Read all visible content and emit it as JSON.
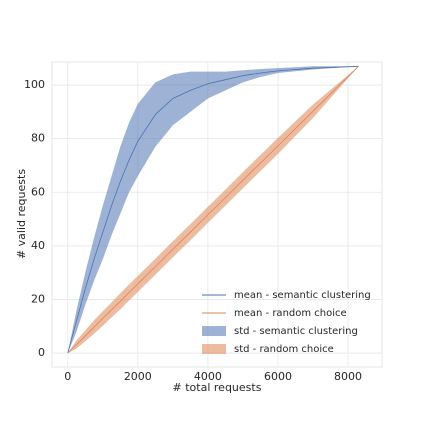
{
  "chart_data": {
    "type": "line",
    "xlabel": "# total requests",
    "ylabel": "# valid requests",
    "x": [
      0,
      250,
      500,
      750,
      1000,
      1250,
      1500,
      1750,
      2000,
      2500,
      3000,
      3500,
      4000,
      4500,
      5000,
      5500,
      6000,
      7000,
      8300
    ],
    "series": [
      {
        "name": "mean - semantic clustering",
        "color": "#4c72b0",
        "values": [
          0,
          12,
          24,
          35,
          45,
          55,
          64,
          72,
          79,
          89,
          95,
          98,
          100.5,
          102,
          103.5,
          104.5,
          105.3,
          106.3,
          107
        ]
      },
      {
        "name": "mean - random choice",
        "color": "#dd8452",
        "values": [
          0,
          3.2,
          6.4,
          9.7,
          12.9,
          16.1,
          19.3,
          22.6,
          25.8,
          32.2,
          38.7,
          45.1,
          51.6,
          58,
          64.5,
          70.9,
          77.3,
          90.2,
          107
        ]
      }
    ],
    "bands": [
      {
        "name": "std - semantic clustering",
        "color": "#4c72b0",
        "upper": [
          0,
          16,
          30,
          43,
          55,
          66,
          77,
          86,
          93,
          101,
          104,
          105,
          105,
          105,
          105.5,
          106,
          106.3,
          107,
          107
        ],
        "lower": [
          0,
          8,
          18,
          27,
          35,
          44,
          52,
          60,
          66,
          77,
          85,
          90,
          95,
          98,
          101,
          103,
          104.5,
          105.8,
          107
        ]
      },
      {
        "name": "std - random choice",
        "color": "#dd8452",
        "upper": [
          0,
          4.7,
          8.4,
          12.2,
          15.6,
          18.9,
          22.3,
          25.6,
          28.8,
          35.2,
          41.7,
          48.1,
          54.6,
          61,
          67.5,
          73.9,
          80.3,
          92.7,
          107
        ],
        "lower": [
          0,
          1.7,
          4.4,
          7.2,
          10.2,
          13.3,
          16.3,
          19.6,
          22.8,
          29.2,
          35.7,
          42.1,
          48.6,
          55,
          61.5,
          67.9,
          74.3,
          87.7,
          107
        ]
      }
    ],
    "xlim": [
      -450,
      8970
    ],
    "ylim": [
      -5.2,
      108.6
    ],
    "xticks": [
      0,
      2000,
      4000,
      6000,
      8000
    ],
    "yticks": [
      0,
      20,
      40,
      60,
      80,
      100
    ],
    "grid": true,
    "legend": "lower right"
  }
}
